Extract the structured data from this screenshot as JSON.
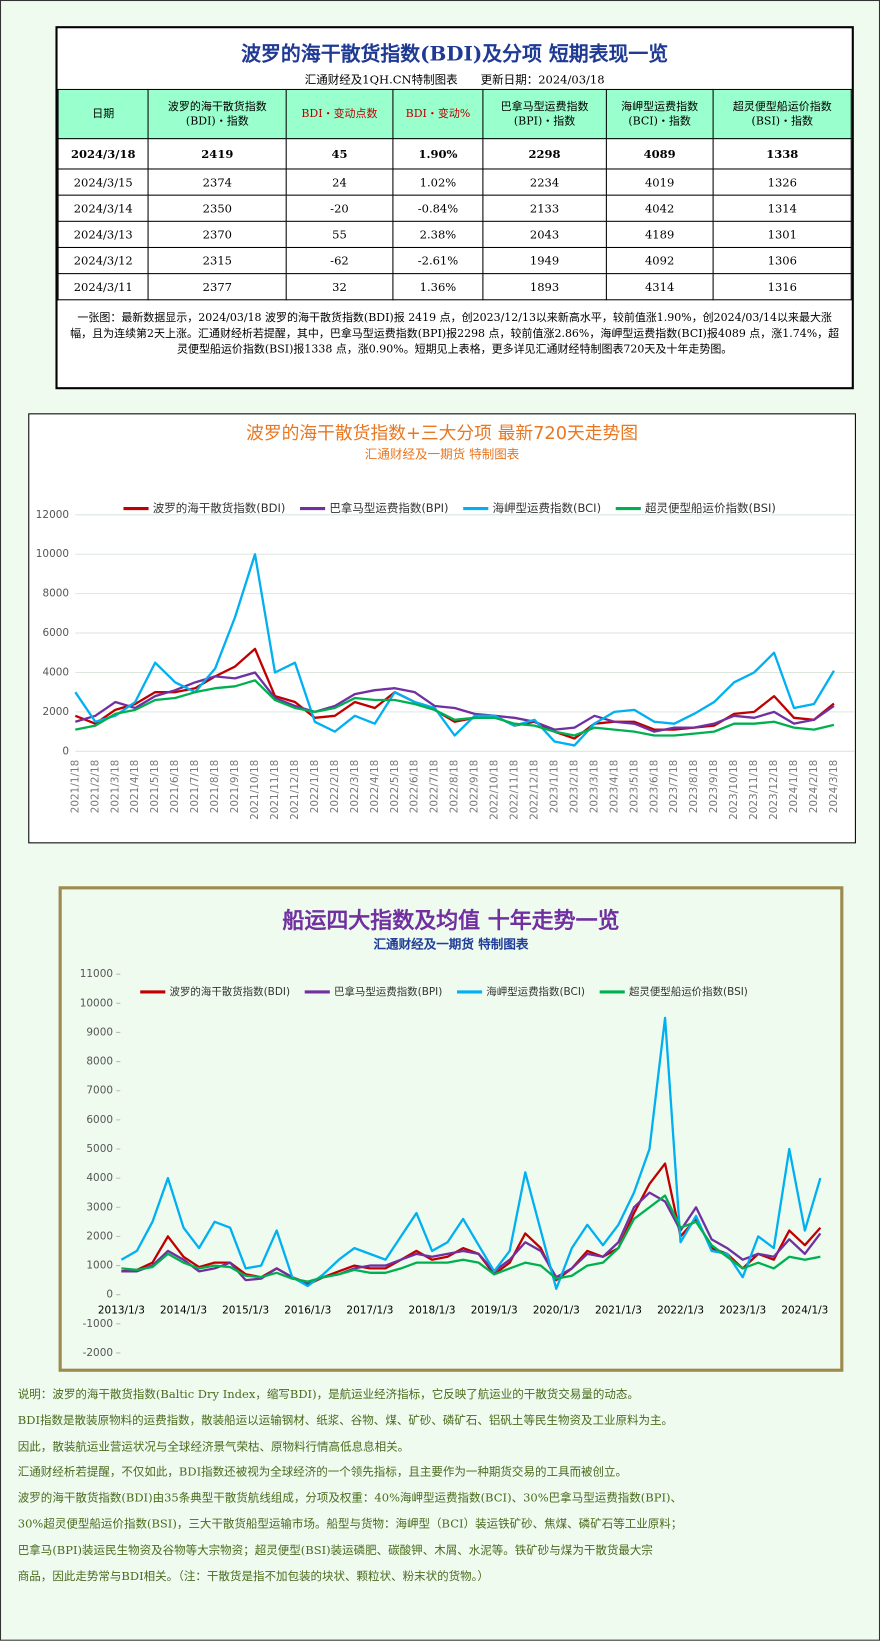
{
  "table": {
    "title": "波罗的海干散货指数(BDI)及分项 短期表现一览",
    "subtitle": "汇通财经及1QH.CN特制图表　　更新日期：2024/03/18",
    "header": [
      "日期",
      "波罗的海干散货指数\n(BDI)・指数",
      "BDI・变动点数",
      "BDI・变动%",
      "巴拿马型运费指数\n(BPI)・指数",
      "海岬型运费指数\n(BCI)・指数",
      "超灵便型船运价指数\n(BSI)・指数"
    ],
    "rows": [
      [
        "2024/3/18",
        "2419",
        "45",
        "1.90%",
        "2298",
        "4089",
        "1338"
      ],
      [
        "2024/3/15",
        "2374",
        "24",
        "1.02%",
        "2234",
        "4019",
        "1326"
      ],
      [
        "2024/3/14",
        "2350",
        "-20",
        "-0.84%",
        "2133",
        "4042",
        "1314"
      ],
      [
        "2024/3/13",
        "2370",
        "55",
        "2.38%",
        "2043",
        "4189",
        "1301"
      ],
      [
        "2024/3/12",
        "2315",
        "-62",
        "-2.61%",
        "1949",
        "4092",
        "1306"
      ],
      [
        "2024/3/11",
        "2377",
        "32",
        "1.36%",
        "1893",
        "4314",
        "1316"
      ]
    ],
    "note": "一张图：最新数据显示，2024/03/18 波罗的海干散货指数(BDI)报 2419 点，创2023/12/13以来新高水平，较前值涨1.90%，创2024/03/14以来最大涨幅，且为连续第2天上涨。汇通财经析若提醒，其中，巴拿马型运费指数(BPI)报2298 点，较前值涨2.86%，海岬型运费指数(BCI)报4089 点，涨1.74%，超灵便型船运价指数(BSI)报1338 点，涨0.90%。短期见上表格，更多详见汇通财经特制图表720天及十年走势图。"
  },
  "chart_data": [
    {
      "type": "line",
      "title": "波罗的海干散货指数+三大分项  最新720天走势图",
      "subtitle": "汇通财经及一期货  特制图表",
      "categories": [
        "2021/1/18",
        "2021/2/18",
        "2021/3/18",
        "2021/4/18",
        "2021/5/18",
        "2021/6/18",
        "2021/7/18",
        "2021/8/18",
        "2021/9/18",
        "2021/10/18",
        "2021/11/18",
        "2021/12/18",
        "2022/1/18",
        "2022/2/18",
        "2022/3/18",
        "2022/4/18",
        "2022/5/18",
        "2022/6/18",
        "2022/7/18",
        "2022/8/18",
        "2022/9/18",
        "2022/10/18",
        "2022/11/18",
        "2022/12/18",
        "2023/1/18",
        "2023/2/18",
        "2023/3/18",
        "2023/4/18",
        "2023/5/18",
        "2023/6/18",
        "2023/7/18",
        "2023/8/18",
        "2023/9/18",
        "2023/10/18",
        "2023/11/18",
        "2023/12/18",
        "2024/1/18",
        "2024/2/18",
        "2024/3/18"
      ],
      "series": [
        {
          "name": "波罗的海干散货指数(BDI)",
          "color": "#c00000",
          "values": [
            1800,
            1400,
            2100,
            2400,
            3000,
            3000,
            3200,
            3800,
            4300,
            5200,
            2800,
            2500,
            1700,
            1800,
            2500,
            2200,
            3000,
            2500,
            2100,
            1500,
            1700,
            1800,
            1300,
            1500,
            1000,
            650,
            1400,
            1500,
            1500,
            1100,
            1100,
            1200,
            1300,
            1900,
            2000,
            2800,
            1700,
            1600,
            2419
          ]
        },
        {
          "name": "巴拿马型运费指数(BPI)",
          "color": "#7030a0",
          "values": [
            1500,
            1800,
            2500,
            2200,
            2800,
            3100,
            3500,
            3800,
            3700,
            4000,
            2700,
            2300,
            2000,
            2300,
            2900,
            3100,
            3200,
            3000,
            2300,
            2200,
            1900,
            1800,
            1700,
            1500,
            1100,
            1200,
            1800,
            1500,
            1400,
            1000,
            1200,
            1200,
            1400,
            1800,
            1700,
            2000,
            1400,
            1600,
            2298
          ]
        },
        {
          "name": "海岬型运费指数(BCI)",
          "color": "#00b0f0",
          "values": [
            3000,
            1500,
            1800,
            2500,
            4500,
            3500,
            3000,
            4200,
            6800,
            10000,
            4000,
            4500,
            1500,
            1000,
            1800,
            1400,
            3000,
            2500,
            2200,
            800,
            1800,
            1800,
            1300,
            1600,
            500,
            300,
            1400,
            2000,
            2100,
            1500,
            1400,
            1900,
            2500,
            3500,
            4000,
            5000,
            2200,
            2400,
            4089
          ]
        },
        {
          "name": "超灵便型船运价指数(BSI)",
          "color": "#00b050",
          "values": [
            1100,
            1300,
            1900,
            2100,
            2600,
            2700,
            3000,
            3200,
            3300,
            3600,
            2600,
            2200,
            2000,
            2200,
            2700,
            2600,
            2600,
            2400,
            2100,
            1600,
            1700,
            1700,
            1400,
            1300,
            1000,
            800,
            1200,
            1100,
            1000,
            800,
            800,
            900,
            1000,
            1400,
            1400,
            1500,
            1200,
            1100,
            1338
          ]
        }
      ],
      "ylim": [
        0,
        12000
      ],
      "yticks": [
        0,
        2000,
        4000,
        6000,
        8000,
        10000,
        12000
      ],
      "grid": true,
      "legend": "top"
    },
    {
      "type": "line",
      "title": "船运四大指数及均值 十年走势一览",
      "subtitle": "汇通财经及一期货 特制图表",
      "categories": [
        "2013/1/3",
        null,
        null,
        null,
        "2014/1/3",
        null,
        null,
        null,
        "2015/1/3",
        null,
        null,
        null,
        "2016/1/3",
        null,
        null,
        null,
        "2017/1/3",
        null,
        null,
        null,
        "2018/1/3",
        null,
        null,
        null,
        "2019/1/3",
        null,
        null,
        null,
        "2020/1/3",
        null,
        null,
        null,
        "2021/1/3",
        null,
        null,
        null,
        "2022/1/3",
        null,
        null,
        null,
        "2023/1/3",
        null,
        null,
        null,
        "2024/1/3",
        null
      ],
      "series": [
        {
          "name": "波罗的海干散货指数(BDI)",
          "color": "#c00000",
          "values": [
            800,
            850,
            1100,
            2000,
            1300,
            950,
            1100,
            1100,
            700,
            600,
            900,
            600,
            350,
            600,
            800,
            1000,
            900,
            900,
            1200,
            1500,
            1200,
            1300,
            1600,
            1400,
            700,
            1100,
            2100,
            1600,
            500,
            900,
            1500,
            1300,
            1600,
            2800,
            3800,
            4500,
            2000,
            2600,
            1600,
            1400,
            900,
            1400,
            1200,
            2200,
            1700,
            2300
          ]
        },
        {
          "name": "巴拿马型运费指数(BPI)",
          "color": "#7030a0",
          "values": [
            800,
            800,
            1000,
            1500,
            1200,
            800,
            900,
            1100,
            500,
            550,
            900,
            600,
            400,
            600,
            700,
            900,
            1000,
            1000,
            1200,
            1400,
            1300,
            1400,
            1500,
            1400,
            800,
            1200,
            1800,
            1500,
            600,
            900,
            1400,
            1300,
            1800,
            3000,
            3500,
            3200,
            2200,
            3000,
            1900,
            1600,
            1200,
            1400,
            1300,
            1900,
            1400,
            2100
          ]
        },
        {
          "name": "海岬型运费指数(BCI)",
          "color": "#00b0f0",
          "values": [
            1200,
            1500,
            2500,
            4000,
            2300,
            1600,
            2500,
            2300,
            900,
            1000,
            2200,
            600,
            300,
            700,
            1200,
            1600,
            1400,
            1200,
            2000,
            2800,
            1500,
            1800,
            2600,
            1700,
            800,
            1500,
            4200,
            2200,
            200,
            1600,
            2400,
            1700,
            2400,
            3500,
            5000,
            9500,
            1800,
            2700,
            1500,
            1400,
            600,
            2000,
            1600,
            5000,
            2200,
            4000
          ]
        },
        {
          "name": "超灵便型船运价指数(BSI)",
          "color": "#00b050",
          "values": [
            900,
            850,
            950,
            1400,
            1100,
            900,
            1000,
            950,
            650,
            600,
            750,
            550,
            450,
            600,
            700,
            850,
            750,
            750,
            900,
            1100,
            1100,
            1100,
            1200,
            1100,
            700,
            900,
            1100,
            1000,
            550,
            650,
            1000,
            1100,
            1600,
            2600,
            3000,
            3400,
            2300,
            2500,
            1700,
            1300,
            900,
            1100,
            900,
            1300,
            1200,
            1300
          ]
        }
      ],
      "ylim": [
        -2000,
        11000
      ],
      "yticks": [
        -2000,
        -1000,
        0,
        1000,
        2000,
        3000,
        4000,
        5000,
        6000,
        7000,
        8000,
        9000,
        10000,
        11000
      ],
      "grid": false,
      "legend": "top"
    }
  ],
  "notes": [
    "说明：波罗的海干散货指数(Baltic Dry Index，缩写BDI)，是航运业经济指标，它反映了航运业的干散货交易量的动态。",
    "BDI指数是散装原物料的运费指数，散装船运以运输钢材、纸浆、谷物、煤、矿砂、磷矿石、铝矾土等民生物资及工业原料为主。",
    "因此，散装航运业营运状况与全球经济景气荣枯、原物料行情高低息息相关。",
    "汇通财经析若提醒，不仅如此，BDI指数还被视为全球经济的一个领先指标，且主要作为一种期货交易的工具而被创立。",
    "波罗的海干散货指数(BDI)由35条典型干散货航线组成，分项及权重：40%海岬型运费指数(BCI)、30%巴拿马型运费指数(BPI)、",
    "30%超灵便型船运价指数(BSI)，三大干散货船型运输市场。船型与货物：海岬型（BCI）装运铁矿砂、焦煤、磷矿石等工业原料；",
    "巴拿马(BPI)装运民生物资及谷物等大宗物资；超灵便型(BSI)装运磷肥、碳酸钾、木屑、水泥等。铁矿砂与煤为干散货最大宗",
    "商品，因此走势常与BDI相关。（注：干散货是指不加包装的块状、颗粒状、粉末状的货物。）"
  ]
}
